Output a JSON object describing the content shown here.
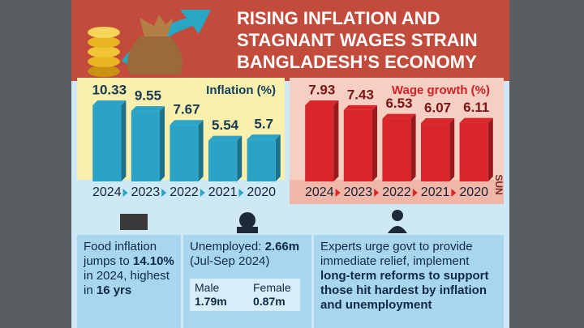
{
  "header": {
    "title_lines": [
      "RISING INFLATION AND",
      "STAGNANT WAGES STRAIN",
      "BANGLADESH’S ECONOMY"
    ]
  },
  "chart_data": [
    {
      "type": "bar",
      "title": "Inflation (%)",
      "categories": [
        "2024",
        "2023",
        "2022",
        "2021",
        "2020"
      ],
      "values": [
        10.33,
        9.55,
        7.67,
        5.54,
        5.7
      ],
      "color": "#2aa3c6"
    },
    {
      "type": "bar",
      "title": "Wage growth (%)",
      "categories": [
        "2024",
        "2023",
        "2022",
        "2021",
        "2020"
      ],
      "values": [
        7.93,
        7.43,
        6.53,
        6.07,
        6.11
      ],
      "color": "#d8262b"
    }
  ],
  "brand": "SUN",
  "facts": {
    "food": [
      "Food inflation jumps to",
      "14.10%",
      "in 2024, highest in",
      "16 yrs"
    ],
    "unemployment": {
      "headline": [
        "Unemployed:",
        "2.66m"
      ],
      "period": "(Jul-Sep 2024)",
      "male": {
        "label": "Male",
        "value": "1.79m"
      },
      "female": {
        "label": "Female",
        "value": "0.87m"
      }
    },
    "experts": [
      "Experts urge govt to provide immediate relief, implement",
      "long-term reforms to support those hit hardest by inflation and unemployment"
    ]
  }
}
